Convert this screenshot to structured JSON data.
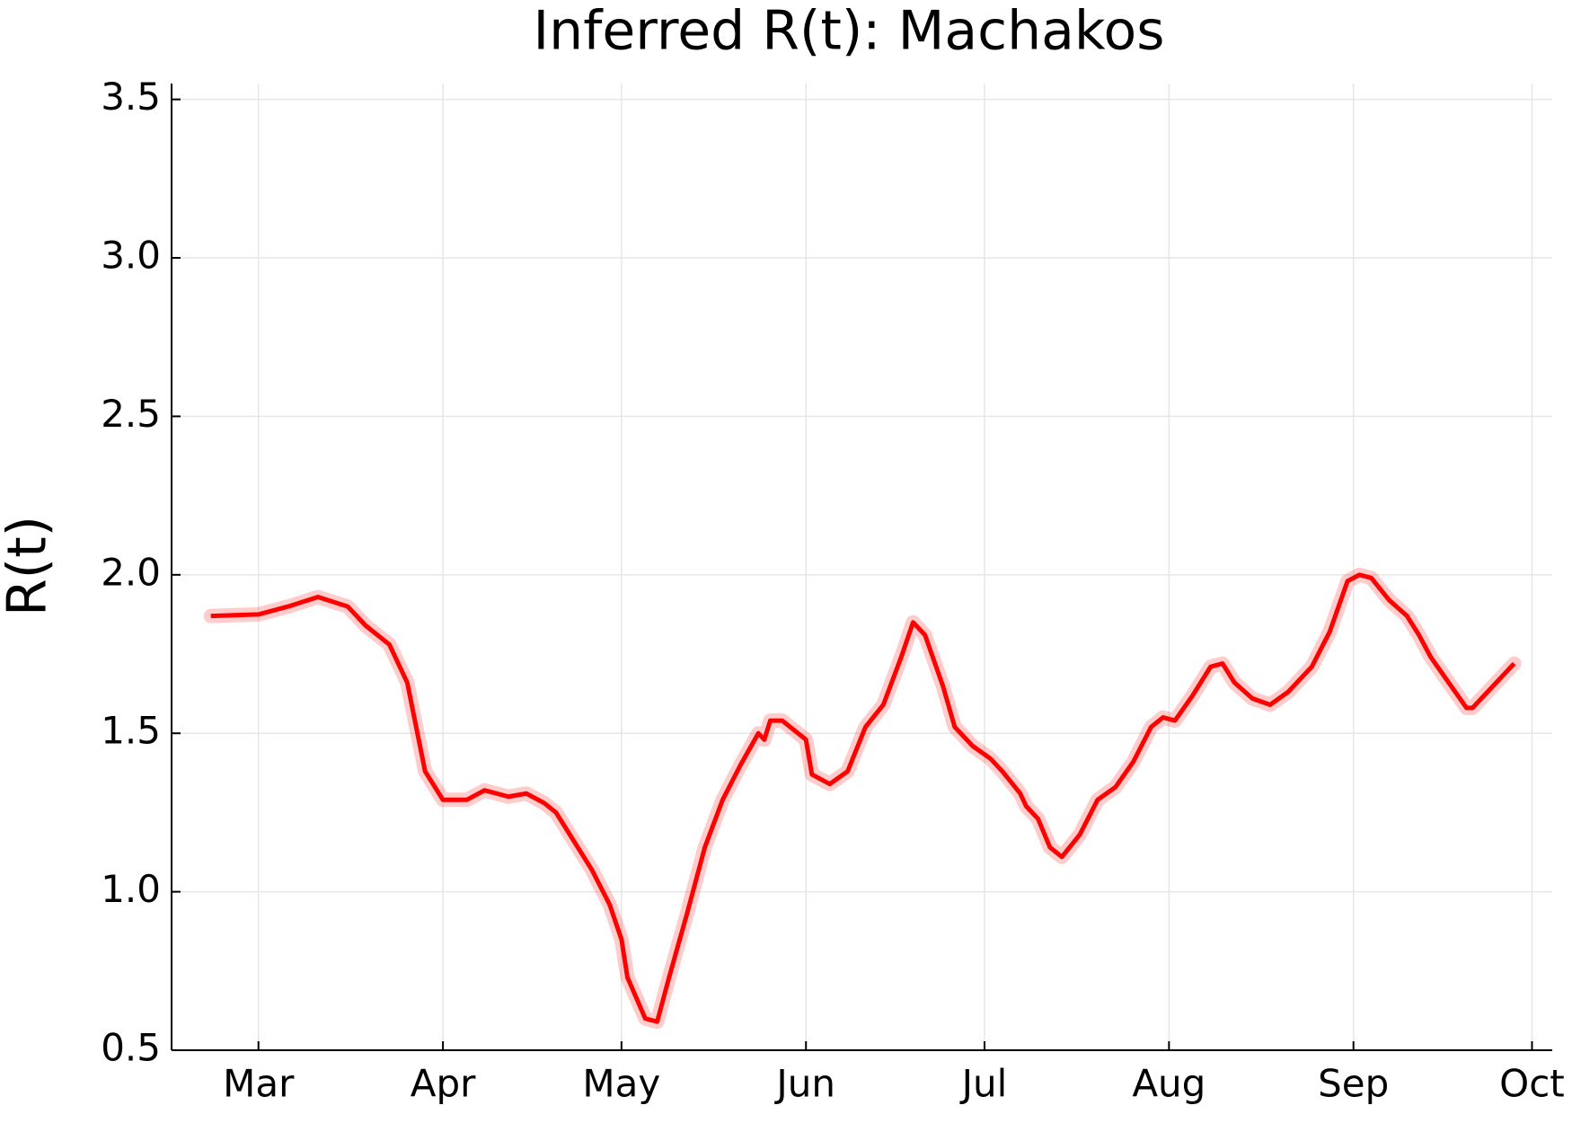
{
  "chart_data": {
    "type": "line",
    "title": "Inferred R(t): Machakos",
    "y_label": "R(t)",
    "x": [
      -8,
      0,
      5,
      10,
      15,
      18,
      22,
      25,
      28,
      31,
      35,
      38,
      42,
      45,
      48,
      50,
      53,
      56,
      59,
      61,
      62,
      65,
      67,
      69,
      72,
      75,
      78,
      81,
      84,
      85,
      86,
      88,
      92,
      93,
      96,
      99,
      102,
      105,
      108,
      110,
      112,
      115,
      117,
      120,
      123,
      125,
      128,
      129,
      131,
      133,
      135,
      138,
      141,
      144,
      147,
      150,
      152,
      154,
      157,
      160,
      162,
      164,
      167,
      170,
      173,
      177,
      180,
      183,
      185,
      187,
      190,
      193,
      195,
      197,
      200,
      203,
      204,
      207,
      211
    ],
    "series": [
      {
        "name": "R(t)",
        "color": "#ff0000",
        "values": [
          1.87,
          1.875,
          1.9,
          1.93,
          1.9,
          1.84,
          1.78,
          1.66,
          1.38,
          1.29,
          1.29,
          1.32,
          1.3,
          1.31,
          1.28,
          1.25,
          1.16,
          1.07,
          0.96,
          0.85,
          0.73,
          0.6,
          0.59,
          0.73,
          0.93,
          1.14,
          1.29,
          1.4,
          1.5,
          1.48,
          1.54,
          1.54,
          1.48,
          1.37,
          1.34,
          1.38,
          1.52,
          1.59,
          1.74,
          1.85,
          1.81,
          1.65,
          1.52,
          1.46,
          1.42,
          1.38,
          1.31,
          1.27,
          1.23,
          1.14,
          1.11,
          1.18,
          1.29,
          1.33,
          1.41,
          1.52,
          1.55,
          1.54,
          1.62,
          1.71,
          1.72,
          1.66,
          1.61,
          1.59,
          1.63,
          1.71,
          1.82,
          1.98,
          2.0,
          1.99,
          1.92,
          1.87,
          1.81,
          1.74,
          1.66,
          1.58,
          1.58,
          1.64,
          1.72
        ]
      }
    ],
    "xlim": [
      -14.6,
      217.4
    ],
    "xticks": [
      {
        "value": 0,
        "label": "Mar"
      },
      {
        "value": 31,
        "label": "Apr"
      },
      {
        "value": 61,
        "label": "May"
      },
      {
        "value": 92,
        "label": "Jun"
      },
      {
        "value": 122,
        "label": "Jul"
      },
      {
        "value": 153,
        "label": "Aug"
      },
      {
        "value": 184,
        "label": "Sep"
      },
      {
        "value": 214,
        "label": "Oct"
      }
    ],
    "ylim": [
      0.5,
      3.55
    ],
    "yticks": [
      {
        "value": 0.5,
        "label": "0.5"
      },
      {
        "value": 1.0,
        "label": "1.0"
      },
      {
        "value": 1.5,
        "label": "1.5"
      },
      {
        "value": 2.0,
        "label": "2.0"
      },
      {
        "value": 2.5,
        "label": "2.5"
      },
      {
        "value": 3.0,
        "label": "3.0"
      },
      {
        "value": 3.5,
        "label": "3.5"
      }
    ],
    "grid": true
  }
}
